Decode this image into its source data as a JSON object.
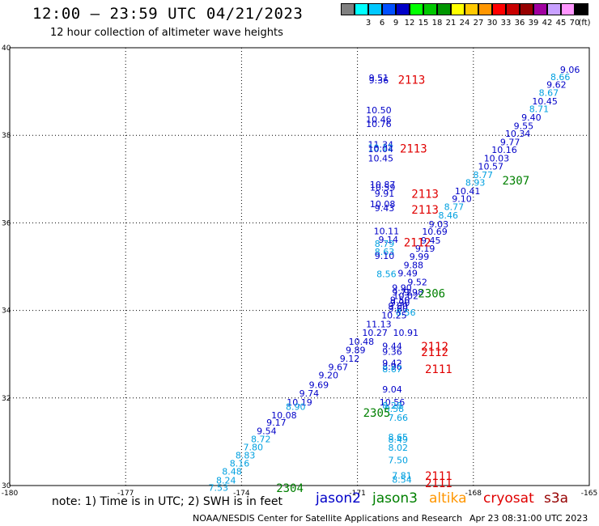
{
  "header": {
    "title": "12:00 – 23:59 UTC 04/21/2023",
    "subtitle": "12 hour collection of altimeter wave heights"
  },
  "legend": {
    "unit": "(ft)",
    "bins": [
      {
        "label": "",
        "color": "#808080"
      },
      {
        "label": "3",
        "color": "#00ffff"
      },
      {
        "label": "6",
        "color": "#00c8ff"
      },
      {
        "label": "9",
        "color": "#0050ff"
      },
      {
        "label": "12",
        "color": "#0000c8"
      },
      {
        "label": "15",
        "color": "#00ff00"
      },
      {
        "label": "18",
        "color": "#00c800"
      },
      {
        "label": "21",
        "color": "#009600"
      },
      {
        "label": "24",
        "color": "#ffff00"
      },
      {
        "label": "27",
        "color": "#ffc800"
      },
      {
        "label": "30",
        "color": "#ff9600"
      },
      {
        "label": "33",
        "color": "#ff0000"
      },
      {
        "label": "36",
        "color": "#c80000"
      },
      {
        "label": "39",
        "color": "#960000"
      },
      {
        "label": "42",
        "color": "#a000a0"
      },
      {
        "label": "45",
        "color": "#c8a0ff"
      },
      {
        "label": "70",
        "color": "#ff96ff"
      },
      {
        "label": "",
        "color": "#000000"
      }
    ]
  },
  "map": {
    "lon_labels": [
      "-180",
      "-177",
      "-174",
      "-171",
      "-168",
      "-165"
    ],
    "lat_labels": [
      "40",
      "38",
      "36",
      "34",
      "32",
      "30"
    ],
    "lon_range": [
      -180,
      -165
    ],
    "lat_range": [
      30,
      40
    ]
  },
  "colors": {
    "mid_blue": "#0000c8",
    "light_blue": "#00a0e0",
    "time_red": "#e00000",
    "time_green": "#008000"
  },
  "observations": [
    {
      "lon": -170.45,
      "lat": 39.32,
      "text": "9.51",
      "color": "mid_blue"
    },
    {
      "lon": -170.45,
      "lat": 39.26,
      "text": "9.36",
      "color": "mid_blue"
    },
    {
      "lon": -170.45,
      "lat": 38.58,
      "text": "10.50",
      "color": "mid_blue"
    },
    {
      "lon": -170.45,
      "lat": 38.36,
      "text": "10.46",
      "color": "mid_blue"
    },
    {
      "lon": -170.45,
      "lat": 38.26,
      "text": "10.76",
      "color": "mid_blue"
    },
    {
      "lon": -170.4,
      "lat": 37.79,
      "text": "11.34",
      "color": "mid_blue"
    },
    {
      "lon": -170.4,
      "lat": 37.72,
      "text": "10.12",
      "color": "light_blue"
    },
    {
      "lon": -170.4,
      "lat": 37.69,
      "text": "10.04",
      "color": "mid_blue"
    },
    {
      "lon": -170.4,
      "lat": 37.48,
      "text": "10.45",
      "color": "mid_blue"
    },
    {
      "lon": -170.35,
      "lat": 36.88,
      "text": "10.87",
      "color": "mid_blue"
    },
    {
      "lon": -170.35,
      "lat": 36.81,
      "text": "10.59",
      "color": "mid_blue"
    },
    {
      "lon": -170.3,
      "lat": 36.67,
      "text": "9.91",
      "color": "mid_blue"
    },
    {
      "lon": -170.35,
      "lat": 36.43,
      "text": "10.08",
      "color": "mid_blue"
    },
    {
      "lon": -170.3,
      "lat": 36.34,
      "text": "9.43",
      "color": "mid_blue"
    },
    {
      "lon": -170.25,
      "lat": 35.81,
      "text": "10.11",
      "color": "mid_blue"
    },
    {
      "lon": -170.2,
      "lat": 35.62,
      "text": "9.14",
      "color": "mid_blue"
    },
    {
      "lon": -170.3,
      "lat": 35.53,
      "text": "8.79",
      "color": "light_blue"
    },
    {
      "lon": -170.3,
      "lat": 35.34,
      "text": "8.63",
      "color": "light_blue"
    },
    {
      "lon": -170.3,
      "lat": 35.25,
      "text": "9.10",
      "color": "mid_blue"
    },
    {
      "lon": -170.25,
      "lat": 34.83,
      "text": "8.56",
      "color": "light_blue"
    },
    {
      "lon": -169.85,
      "lat": 34.52,
      "text": "9.90",
      "color": "mid_blue"
    },
    {
      "lon": -169.85,
      "lat": 34.42,
      "text": "9.72",
      "color": "mid_blue"
    },
    {
      "lon": -169.55,
      "lat": 34.42,
      "text": "9.98",
      "color": "mid_blue"
    },
    {
      "lon": -169.75,
      "lat": 34.33,
      "text": "10.02",
      "color": "mid_blue"
    },
    {
      "lon": -169.9,
      "lat": 34.24,
      "text": "9.50",
      "color": "mid_blue"
    },
    {
      "lon": -169.9,
      "lat": 34.18,
      "text": "9.90",
      "color": "mid_blue"
    },
    {
      "lon": -169.95,
      "lat": 34.1,
      "text": "9.80",
      "color": "mid_blue"
    },
    {
      "lon": -169.95,
      "lat": 34.04,
      "text": "9.60",
      "color": "mid_blue"
    },
    {
      "lon": -169.75,
      "lat": 33.96,
      "text": "8.56",
      "color": "light_blue"
    },
    {
      "lon": -170.05,
      "lat": 33.89,
      "text": "10.25",
      "color": "mid_blue"
    },
    {
      "lon": -170.45,
      "lat": 33.69,
      "text": "11.13",
      "color": "mid_blue"
    },
    {
      "lon": -170.55,
      "lat": 33.49,
      "text": "10.27",
      "color": "mid_blue"
    },
    {
      "lon": -169.75,
      "lat": 33.49,
      "text": "10.91",
      "color": "mid_blue"
    },
    {
      "lon": -170.9,
      "lat": 33.29,
      "text": "10.48",
      "color": "mid_blue"
    },
    {
      "lon": -170.1,
      "lat": 33.19,
      "text": "9.44",
      "color": "mid_blue"
    },
    {
      "lon": -171.05,
      "lat": 33.1,
      "text": "9.89",
      "color": "mid_blue"
    },
    {
      "lon": -170.1,
      "lat": 33.06,
      "text": "9.36",
      "color": "mid_blue"
    },
    {
      "lon": -171.2,
      "lat": 32.9,
      "text": "9.12",
      "color": "mid_blue"
    },
    {
      "lon": -170.1,
      "lat": 32.8,
      "text": "9.42",
      "color": "mid_blue"
    },
    {
      "lon": -171.5,
      "lat": 32.71,
      "text": "9.67",
      "color": "mid_blue"
    },
    {
      "lon": -170.1,
      "lat": 32.72,
      "text": "8.96",
      "color": "mid_blue"
    },
    {
      "lon": -170.1,
      "lat": 32.66,
      "text": "8.67",
      "color": "light_blue"
    },
    {
      "lon": -171.75,
      "lat": 32.52,
      "text": "9.20",
      "color": "mid_blue"
    },
    {
      "lon": -172,
      "lat": 32.3,
      "text": "9.69",
      "color": "mid_blue"
    },
    {
      "lon": -170.1,
      "lat": 32.2,
      "text": "9.04",
      "color": "mid_blue"
    },
    {
      "lon": -172.25,
      "lat": 32.11,
      "text": "9.74",
      "color": "mid_blue"
    },
    {
      "lon": -172.5,
      "lat": 31.9,
      "text": "10.19",
      "color": "mid_blue"
    },
    {
      "lon": -170.1,
      "lat": 31.9,
      "text": "10.56",
      "color": "mid_blue"
    },
    {
      "lon": -170.1,
      "lat": 31.83,
      "text": "8.28",
      "color": "light_blue"
    },
    {
      "lon": -172.6,
      "lat": 31.8,
      "text": "8.90",
      "color": "light_blue"
    },
    {
      "lon": -170.05,
      "lat": 31.76,
      "text": "8.58",
      "color": "light_blue"
    },
    {
      "lon": -172.9,
      "lat": 31.61,
      "text": "10.08",
      "color": "mid_blue"
    },
    {
      "lon": -169.95,
      "lat": 31.55,
      "text": "7.66",
      "color": "light_blue"
    },
    {
      "lon": -173.1,
      "lat": 31.44,
      "text": "9.17",
      "color": "mid_blue"
    },
    {
      "lon": -173.35,
      "lat": 31.25,
      "text": "9.54",
      "color": "mid_blue"
    },
    {
      "lon": -169.95,
      "lat": 31.11,
      "text": "8.65",
      "color": "light_blue"
    },
    {
      "lon": -173.5,
      "lat": 31.06,
      "text": "8.72",
      "color": "light_blue"
    },
    {
      "lon": -169.95,
      "lat": 31.05,
      "text": "8.49",
      "color": "light_blue"
    },
    {
      "lon": -173.7,
      "lat": 30.88,
      "text": "7.80",
      "color": "light_blue"
    },
    {
      "lon": -169.95,
      "lat": 30.87,
      "text": "8.02",
      "color": "light_blue"
    },
    {
      "lon": -173.9,
      "lat": 30.69,
      "text": "8.83",
      "color": "light_blue"
    },
    {
      "lon": -169.95,
      "lat": 30.58,
      "text": "7.50",
      "color": "light_blue"
    },
    {
      "lon": -174.05,
      "lat": 30.51,
      "text": "8.16",
      "color": "light_blue"
    },
    {
      "lon": -174.25,
      "lat": 30.32,
      "text": "8.48",
      "color": "light_blue"
    },
    {
      "lon": -169.85,
      "lat": 30.23,
      "text": "7.81",
      "color": "light_blue"
    },
    {
      "lon": -174.4,
      "lat": 30.12,
      "text": "8.24",
      "color": "light_blue"
    },
    {
      "lon": -169.85,
      "lat": 30.14,
      "text": "8.54",
      "color": "light_blue"
    },
    {
      "lon": -174.6,
      "lat": 29.95,
      "text": "7.53",
      "color": "light_blue"
    },
    {
      "lon": -165.5,
      "lat": 39.5,
      "text": "9.06",
      "color": "mid_blue"
    },
    {
      "lon": -165.75,
      "lat": 39.33,
      "text": "8.66",
      "color": "light_blue"
    },
    {
      "lon": -165.85,
      "lat": 39.16,
      "text": "9.62",
      "color": "mid_blue"
    },
    {
      "lon": -166.05,
      "lat": 38.97,
      "text": "8.67",
      "color": "light_blue"
    },
    {
      "lon": -166.15,
      "lat": 38.78,
      "text": "10.45",
      "color": "mid_blue"
    },
    {
      "lon": -166.3,
      "lat": 38.6,
      "text": "8.71",
      "color": "light_blue"
    },
    {
      "lon": -166.5,
      "lat": 38.41,
      "text": "9.40",
      "color": "mid_blue"
    },
    {
      "lon": -166.7,
      "lat": 38.22,
      "text": "9.55",
      "color": "mid_blue"
    },
    {
      "lon": -166.85,
      "lat": 38.04,
      "text": "10.34",
      "color": "mid_blue"
    },
    {
      "lon": -167.05,
      "lat": 37.85,
      "text": "9.77",
      "color": "mid_blue"
    },
    {
      "lon": -167.2,
      "lat": 37.67,
      "text": "10.16",
      "color": "mid_blue"
    },
    {
      "lon": -167.4,
      "lat": 37.48,
      "text": "10.03",
      "color": "mid_blue"
    },
    {
      "lon": -167.55,
      "lat": 37.29,
      "text": "10.57",
      "color": "mid_blue"
    },
    {
      "lon": -167.75,
      "lat": 37.1,
      "text": "8.77",
      "color": "light_blue"
    },
    {
      "lon": -167.95,
      "lat": 36.92,
      "text": "8.93",
      "color": "light_blue"
    },
    {
      "lon": -168.15,
      "lat": 36.73,
      "text": "10.41",
      "color": "mid_blue"
    },
    {
      "lon": -168.3,
      "lat": 36.55,
      "text": "9.10",
      "color": "mid_blue"
    },
    {
      "lon": -168.5,
      "lat": 36.37,
      "text": "8.77",
      "color": "light_blue"
    },
    {
      "lon": -168.65,
      "lat": 36.17,
      "text": "8.46",
      "color": "light_blue"
    },
    {
      "lon": -168.9,
      "lat": 35.97,
      "text": "9.03",
      "color": "mid_blue"
    },
    {
      "lon": -169.0,
      "lat": 35.8,
      "text": "10.69",
      "color": "mid_blue"
    },
    {
      "lon": -169.1,
      "lat": 35.6,
      "text": "9.45",
      "color": "mid_blue"
    },
    {
      "lon": -169.25,
      "lat": 35.42,
      "text": "9.19",
      "color": "mid_blue"
    },
    {
      "lon": -169.4,
      "lat": 35.23,
      "text": "9.99",
      "color": "mid_blue"
    },
    {
      "lon": -169.55,
      "lat": 35.04,
      "text": "9.88",
      "color": "mid_blue"
    },
    {
      "lon": -169.7,
      "lat": 34.85,
      "text": "9.49",
      "color": "mid_blue"
    },
    {
      "lon": -169.45,
      "lat": 34.65,
      "text": "9.52",
      "color": "mid_blue"
    }
  ],
  "passes": [
    {
      "lon": -169.6,
      "lat": 39.27,
      "text": "2113",
      "color": "time_red"
    },
    {
      "lon": -169.55,
      "lat": 37.7,
      "text": "2113",
      "color": "time_red"
    },
    {
      "lon": -169.25,
      "lat": 36.66,
      "text": "2113",
      "color": "time_red"
    },
    {
      "lon": -169.25,
      "lat": 36.3,
      "text": "2113",
      "color": "time_red"
    },
    {
      "lon": -169.45,
      "lat": 35.55,
      "text": "2112",
      "color": "time_red"
    },
    {
      "lon": -169.08,
      "lat": 34.39,
      "text": "2306",
      "color": "time_green"
    },
    {
      "lon": -169.0,
      "lat": 33.18,
      "text": "2112",
      "color": "time_red"
    },
    {
      "lon": -169.0,
      "lat": 33.05,
      "text": "2112",
      "color": "time_red"
    },
    {
      "lon": -168.9,
      "lat": 32.66,
      "text": "2111",
      "color": "time_red"
    },
    {
      "lon": -170.5,
      "lat": 31.66,
      "text": "2305",
      "color": "time_green"
    },
    {
      "lon": -166.9,
      "lat": 36.97,
      "text": "2307",
      "color": "time_green"
    },
    {
      "lon": -168.9,
      "lat": 30.22,
      "text": "2111",
      "color": "time_red"
    },
    {
      "lon": -168.9,
      "lat": 30.06,
      "text": "2111",
      "color": "time_red"
    },
    {
      "lon": -172.75,
      "lat": 29.94,
      "text": "2304",
      "color": "time_green"
    }
  ],
  "footer": {
    "note": "note:  1) Time is in UTC; 2) SWH is in feet",
    "satellites": [
      {
        "name": "jason2",
        "color": "#0000c8"
      },
      {
        "name": "jason3",
        "color": "#008000"
      },
      {
        "name": "altika",
        "color": "#ff9600"
      },
      {
        "name": "cryosat",
        "color": "#e00000"
      },
      {
        "name": "s3a",
        "color": "#960000"
      }
    ],
    "credit": "NOAA/NESDIS Center for Satellite Applications and Research",
    "timestamp": "Apr 23 08:31:00 UTC 2023"
  }
}
